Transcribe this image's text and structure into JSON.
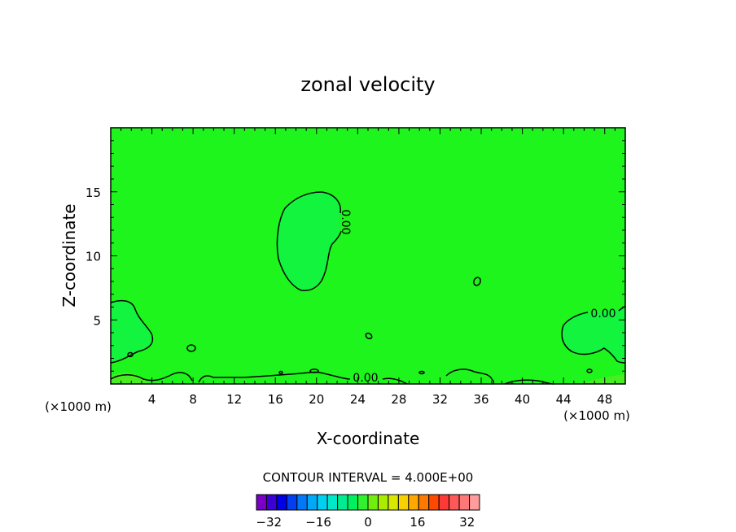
{
  "chart_data": {
    "type": "contour",
    "title": "zonal velocity",
    "xlabel": "X-coordinate",
    "ylabel": "Z-coordinate",
    "x_unit": "(×1000 m)",
    "z_unit": "(×1000 m)",
    "xlim": [
      0,
      50
    ],
    "ylim": [
      0,
      20
    ],
    "x_ticks": [
      4,
      8,
      12,
      16,
      20,
      24,
      28,
      32,
      36,
      40,
      44,
      48
    ],
    "y_ticks": [
      5,
      10,
      15
    ],
    "contour_interval_text": "CONTOUR INTERVAL = 4.000E+00",
    "contour_labels": [
      "0.00",
      "0.00",
      "0.00"
    ],
    "field_color": "#1df51d",
    "colorbar": {
      "min": -36,
      "max": 36,
      "step": 4,
      "tick_values": [
        -32,
        -16,
        0,
        16,
        32
      ],
      "tick_labels": [
        "−32",
        "−16",
        "0",
        "16",
        "32"
      ],
      "colors": [
        "#7a00c8",
        "#3a00d6",
        "#0000e6",
        "#0040f0",
        "#0078f8",
        "#00a8f8",
        "#00d0f0",
        "#00e8c8",
        "#00ec90",
        "#00f060",
        "#30f030",
        "#70ee10",
        "#a8ec00",
        "#d8e800",
        "#f8d000",
        "#ffa800",
        "#ff7800",
        "#ff4800",
        "#ff3838",
        "#ff5858",
        "#ff7878",
        "#ff9c9c"
      ]
    },
    "regions": [
      {
        "name": "upper-lens",
        "polarity": "positive-weak",
        "center_x_km": 20,
        "center_z_km": 11
      },
      {
        "name": "left-lower-lobe",
        "polarity": "positive-weak",
        "center_x_km": 2,
        "center_z_km": 4
      },
      {
        "name": "right-lower-lobe",
        "polarity": "positive-weak",
        "center_x_km": 47,
        "center_z_km": 3
      }
    ]
  }
}
